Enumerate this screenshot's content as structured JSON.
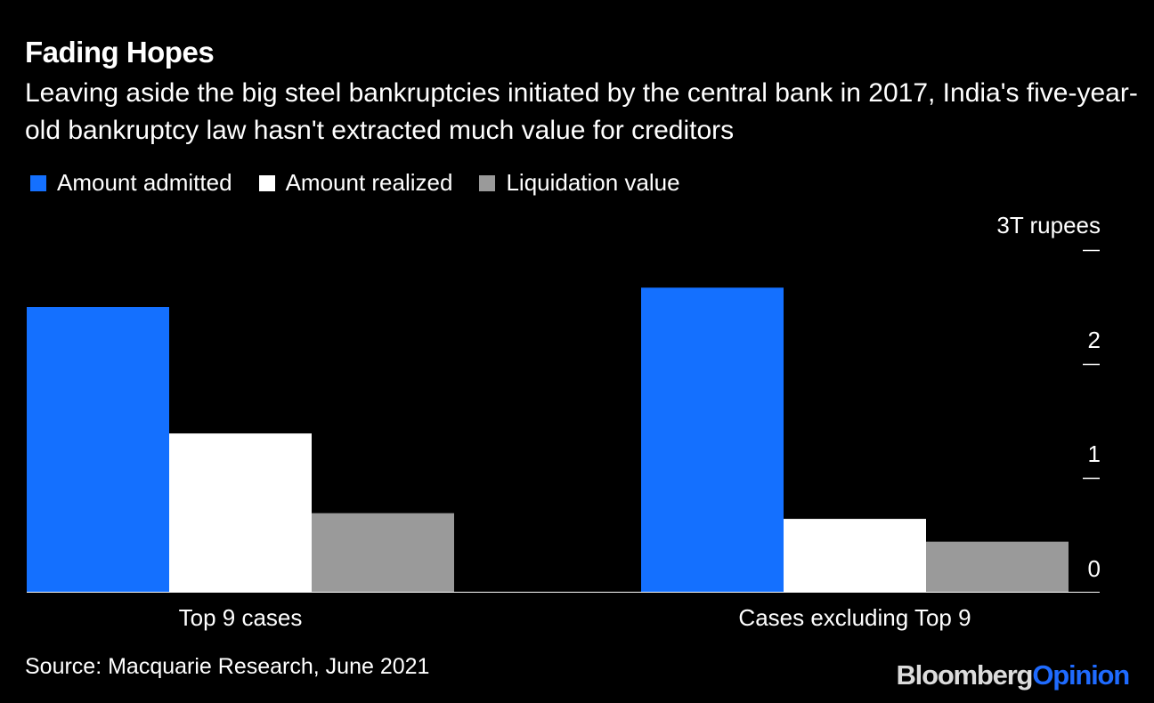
{
  "header": {
    "title": "Fading Hopes",
    "subtitle": "Leaving aside the big steel bankruptcies initiated by the central bank in 2017, India's five-year-old bankruptcy law hasn't extracted much value for creditors"
  },
  "footer": {
    "source": "Source: Macquarie Research, June 2021",
    "brand_part1": "Bloomberg",
    "brand_part2": "Opinion"
  },
  "colors": {
    "background": "#000000",
    "amount_admitted": "#1470ff",
    "amount_realized": "#ffffff",
    "liquidation_value": "#9a9a9a"
  },
  "chart_data": {
    "type": "bar",
    "title": "Fading Hopes",
    "unit_label": "3T rupees",
    "categories": [
      "Top 9 cases",
      "Cases excluding Top 9"
    ],
    "series": [
      {
        "name": "Amount admitted",
        "color": "#1470ff",
        "values": [
          2.5,
          2.67
        ]
      },
      {
        "name": "Amount realized",
        "color": "#ffffff",
        "values": [
          1.39,
          0.64
        ]
      },
      {
        "name": "Liquidation value",
        "color": "#9a9a9a",
        "values": [
          0.69,
          0.44
        ]
      }
    ],
    "y_ticks": [
      {
        "value": 0,
        "label": "0"
      },
      {
        "value": 1,
        "label": "1"
      },
      {
        "value": 2,
        "label": "2"
      },
      {
        "value": 3,
        "label": ""
      }
    ],
    "ylim": [
      0,
      3
    ],
    "legend_position": "top-left",
    "y_axis_side": "right",
    "grid": false
  }
}
